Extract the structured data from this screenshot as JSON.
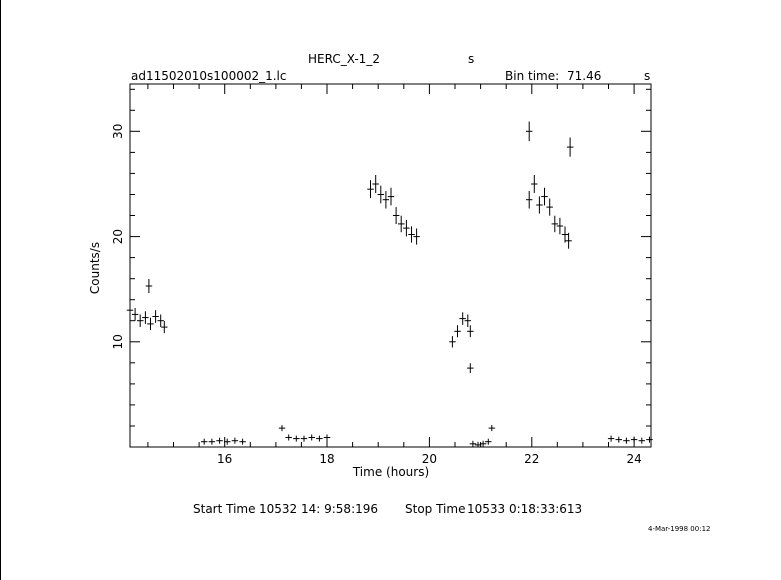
{
  "header": {
    "target": "HERC_X-1_2",
    "target_unit": "s",
    "filename": "ad11502010s100002_1.lc",
    "bin_time_label": "Bin time:",
    "bin_time_value": "71.46",
    "bin_time_unit": "s"
  },
  "footer": {
    "start_label": "Start Time",
    "start_value": "10532 14: 9:58:196",
    "stop_label": "Stop Time",
    "stop_value": "10533  0:18:33:613",
    "plot_date": "4-Mar-1998 00:12"
  },
  "chart_data": {
    "type": "scatter",
    "xlabel": "Time (hours)",
    "ylabel": "Counts/s",
    "xlim": [
      14.15,
      24.33
    ],
    "ylim": [
      0,
      34.5
    ],
    "xticks": [
      16,
      18,
      20,
      22,
      24
    ],
    "yticks": [
      10,
      20,
      30
    ],
    "grid": false,
    "segments": [
      {
        "x": [
          14.15,
          14.25,
          14.35,
          14.45,
          14.55,
          14.65,
          14.75,
          14.82
        ],
        "y": [
          13.0,
          12.6,
          12.0,
          12.3,
          11.7,
          12.4,
          12.0,
          11.4
        ]
      },
      {
        "x": [
          14.52
        ],
        "y": [
          15.3
        ]
      },
      {
        "x": [
          15.6,
          15.75,
          15.9,
          16.05,
          16.2,
          16.35
        ],
        "y": [
          0.5,
          0.5,
          0.6,
          0.5,
          0.6,
          0.5
        ]
      },
      {
        "x": [
          17.12,
          17.25,
          17.4,
          17.55,
          17.7,
          17.85,
          18.0
        ],
        "y": [
          1.8,
          0.9,
          0.8,
          0.8,
          0.9,
          0.8,
          0.9
        ]
      },
      {
        "x": [
          18.85,
          18.95,
          19.05,
          19.15,
          19.25,
          19.35,
          19.45,
          19.55,
          19.65,
          19.75
        ],
        "y": [
          24.5,
          25.0,
          24.0,
          23.5,
          23.8,
          22.0,
          21.2,
          20.8,
          20.2,
          20.0
        ]
      },
      {
        "x": [
          20.45,
          20.55,
          20.65,
          20.75,
          20.8
        ],
        "y": [
          10.0,
          11.0,
          12.2,
          12.0,
          11.0
        ]
      },
      {
        "x": [
          20.8
        ],
        "y": [
          7.5
        ]
      },
      {
        "x": [
          20.85,
          20.95,
          21.05,
          21.15,
          21.22
        ],
        "y": [
          0.3,
          0.2,
          0.3,
          0.5,
          1.8
        ]
      },
      {
        "x": [
          21.95
        ],
        "y": [
          30.0
        ]
      },
      {
        "x": [
          21.95,
          22.05,
          22.15,
          22.25,
          22.35,
          22.45,
          22.55,
          22.65,
          22.72
        ],
        "y": [
          23.5,
          25.0,
          23.0,
          23.8,
          22.8,
          21.2,
          21.0,
          20.2,
          19.6
        ]
      },
      {
        "x": [
          22.75
        ],
        "y": [
          28.5
        ]
      },
      {
        "x": [
          23.55,
          23.7,
          23.85,
          24.0,
          24.15,
          24.3
        ],
        "y": [
          0.8,
          0.7,
          0.6,
          0.7,
          0.6,
          0.7
        ]
      }
    ]
  }
}
